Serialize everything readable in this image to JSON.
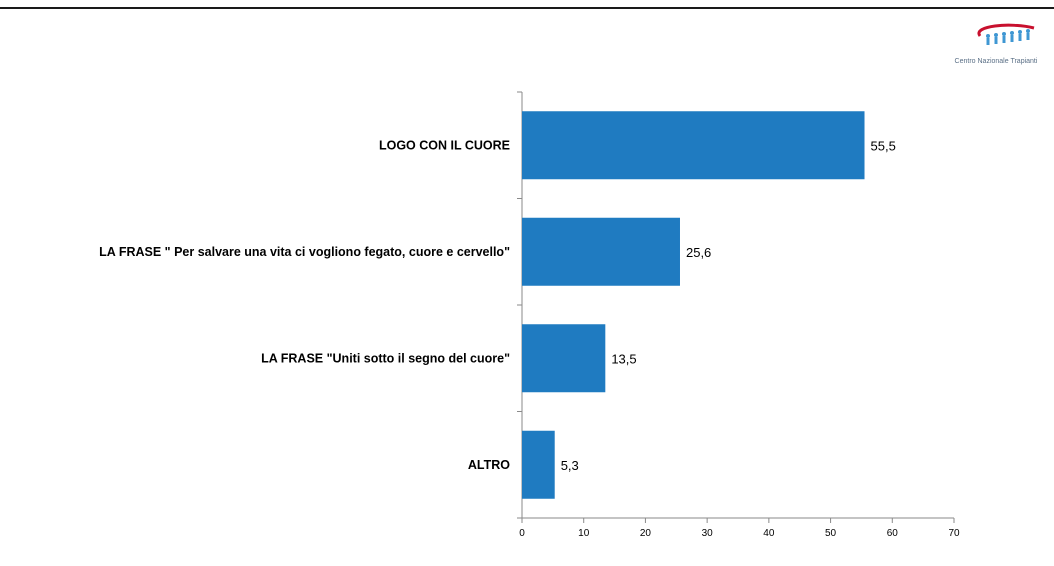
{
  "logo": {
    "caption": "Centro Nazionale Trapianti"
  },
  "colors": {
    "bar": "#1f7bc1",
    "axis": "#8a8a8a",
    "logo_arc": "#c8102e",
    "logo_figures": "#3f97d3"
  },
  "chart_data": {
    "type": "bar",
    "orientation": "horizontal",
    "categories": [
      "LOGO CON IL CUORE",
      "LA FRASE \" Per salvare una vita ci vogliono fegato, cuore e cervello\"",
      "LA FRASE \"Uniti sotto il segno del cuore\"",
      "ALTRO"
    ],
    "values": [
      55.5,
      25.6,
      13.5,
      5.3
    ],
    "value_labels": [
      "55,5",
      "25,6",
      "13,5",
      "5,3"
    ],
    "xlim": [
      0,
      70
    ],
    "xticks": [
      0,
      10,
      20,
      30,
      40,
      50,
      60,
      70
    ],
    "grid": false,
    "legend": "none",
    "title": "",
    "xlabel": "",
    "ylabel": ""
  }
}
